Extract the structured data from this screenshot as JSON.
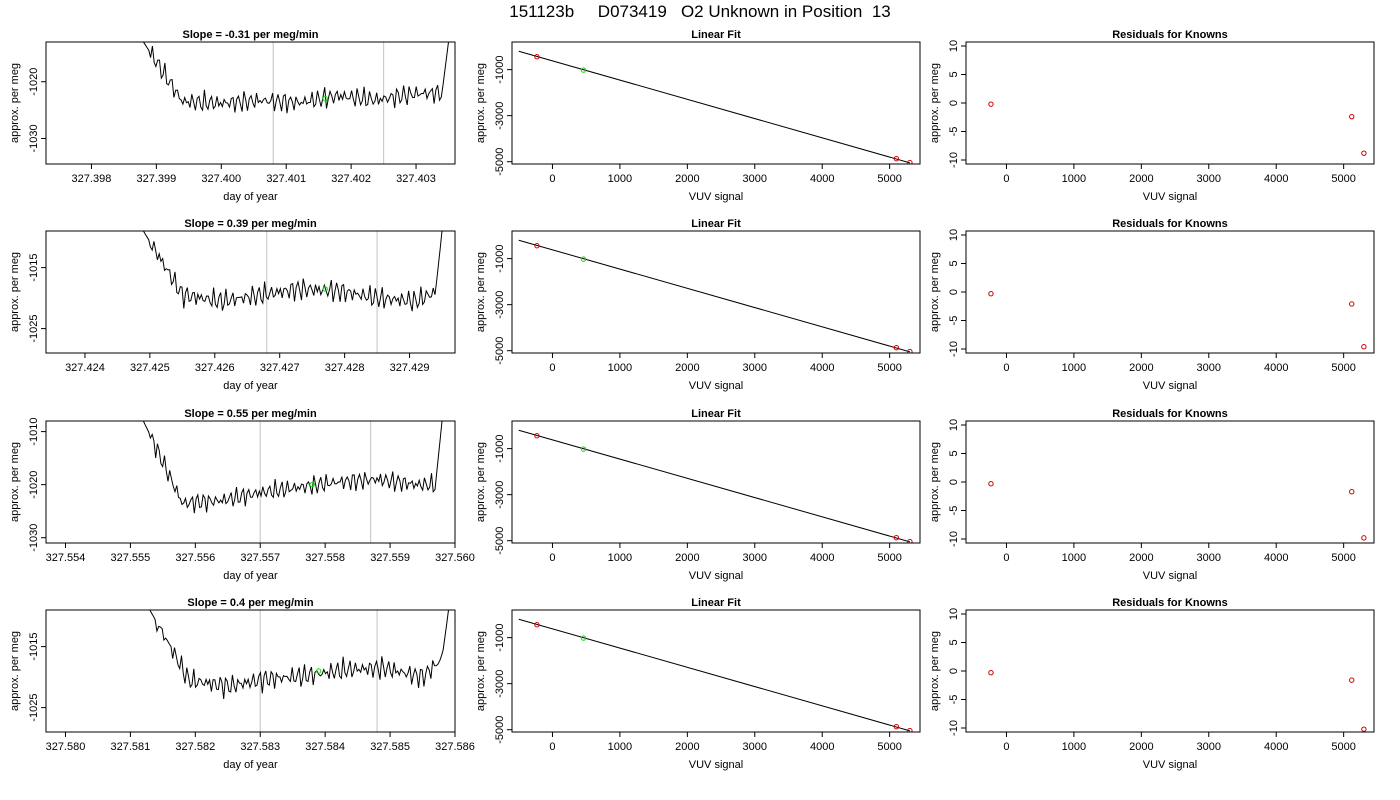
{
  "page": {
    "title": "151123b     D073419   O2 Unknown in Position  13"
  },
  "chart_data": [
    {
      "type": "line",
      "panel": "timeseries-1",
      "title": "Slope =  -0.31  per meg/min",
      "xlabel": "day of year",
      "ylabel": "approx. per meg",
      "xlim": [
        327.3973,
        327.4036
      ],
      "ylim": [
        -1034.5,
        -1013
      ],
      "xticks": [
        "327.398",
        "327.399",
        "327.400",
        "327.401",
        "327.402",
        "327.403"
      ],
      "yticks": [
        -1030,
        -1020
      ],
      "vlines": [
        327.4008,
        327.4025
      ],
      "marker": {
        "x": 327.4016,
        "y": -1023,
        "color": "#00dd00"
      },
      "line_color": "#000000",
      "series": [
        {
          "x": [
            327.3988,
            327.3994,
            327.4,
            327.4006,
            327.4012,
            327.4018,
            327.4024,
            327.403,
            327.4034,
            327.4035
          ],
          "y": [
            -1013,
            -1023.5,
            -1023.8,
            -1023.3,
            -1023.7,
            -1022.5,
            -1023.2,
            -1022.1,
            -1022.0,
            -1013
          ]
        }
      ]
    },
    {
      "type": "line",
      "panel": "linear-fit-1",
      "title": "Linear Fit",
      "xlabel": "VUV signal",
      "ylabel": "approx. per meg",
      "xlim": [
        -600,
        5450
      ],
      "ylim": [
        -5100,
        200
      ],
      "xticks": [
        0,
        1000,
        2000,
        3000,
        4000,
        5000
      ],
      "yticks": [
        -5000,
        -3000,
        -1000
      ],
      "line": {
        "x": [
          -500,
          5300
        ],
        "y": [
          -200,
          -5050
        ]
      },
      "points": [
        {
          "x": -230,
          "y": -440,
          "color": "#cc0000"
        },
        {
          "x": 5100,
          "y": -4870,
          "color": "#cc0000"
        },
        {
          "x": 5300,
          "y": -5040,
          "color": "#cc0000"
        }
      ],
      "unknown": {
        "x": 460,
        "y": -1020,
        "color": "#00dd00"
      }
    },
    {
      "type": "scatter",
      "panel": "residuals-1",
      "title": "Residuals for Knowns",
      "xlabel": "VUV signal",
      "ylabel": "approx. per meg",
      "xlim": [
        -600,
        5450
      ],
      "ylim": [
        -10.7,
        10.7
      ],
      "xticks": [
        0,
        1000,
        2000,
        3000,
        4000,
        5000
      ],
      "yticks": [
        -10,
        -5,
        0,
        5,
        10
      ],
      "points": [
        {
          "x": -230,
          "y": -0.2
        },
        {
          "x": 5120,
          "y": -2.4
        },
        {
          "x": 5300,
          "y": -8.8
        }
      ],
      "color": "#cc0000"
    },
    {
      "type": "line",
      "panel": "timeseries-2",
      "title": "Slope =  0.39  per meg/min",
      "xlabel": "day of year",
      "ylabel": "approx. per meg",
      "xlim": [
        327.4234,
        327.4297
      ],
      "ylim": [
        -1029,
        -1009
      ],
      "xticks": [
        "327.424",
        "327.425",
        "327.426",
        "327.427",
        "327.428",
        "327.429"
      ],
      "yticks": [
        -1025,
        -1015
      ],
      "vlines": [
        327.4268,
        327.4285
      ],
      "marker": {
        "x": 327.4277,
        "y": -1018.5,
        "color": "#00dd00"
      },
      "line_color": "#000000",
      "series": [
        {
          "x": [
            327.4249,
            327.4255,
            327.4261,
            327.4267,
            327.4273,
            327.4279,
            327.4285,
            327.4291,
            327.4294,
            327.4295
          ],
          "y": [
            -1009,
            -1019.5,
            -1020.5,
            -1019.5,
            -1018.5,
            -1018.8,
            -1020.0,
            -1020.5,
            -1019.0,
            -1009
          ]
        }
      ]
    },
    {
      "type": "line",
      "panel": "linear-fit-2",
      "title": "Linear Fit",
      "xlabel": "VUV signal",
      "ylabel": "approx. per meg",
      "xlim": [
        -600,
        5450
      ],
      "ylim": [
        -5100,
        200
      ],
      "xticks": [
        0,
        1000,
        2000,
        3000,
        4000,
        5000
      ],
      "yticks": [
        -5000,
        -3000,
        -1000
      ],
      "line": {
        "x": [
          -500,
          5300
        ],
        "y": [
          -200,
          -5050
        ]
      },
      "points": [
        {
          "x": -230,
          "y": -440,
          "color": "#cc0000"
        },
        {
          "x": 5100,
          "y": -4870,
          "color": "#cc0000"
        },
        {
          "x": 5300,
          "y": -5040,
          "color": "#cc0000"
        }
      ],
      "unknown": {
        "x": 460,
        "y": -1020,
        "color": "#00dd00"
      }
    },
    {
      "type": "scatter",
      "panel": "residuals-2",
      "title": "Residuals for Knowns",
      "xlabel": "VUV signal",
      "ylabel": "approx. per meg",
      "xlim": [
        -600,
        5450
      ],
      "ylim": [
        -10.7,
        10.7
      ],
      "xticks": [
        0,
        1000,
        2000,
        3000,
        4000,
        5000
      ],
      "yticks": [
        -10,
        -5,
        0,
        5,
        10
      ],
      "points": [
        {
          "x": -230,
          "y": -0.3
        },
        {
          "x": 5120,
          "y": -2.1
        },
        {
          "x": 5300,
          "y": -9.6
        }
      ],
      "color": "#cc0000"
    },
    {
      "type": "line",
      "panel": "timeseries-3",
      "title": "Slope =  0.55  per meg/min",
      "xlabel": "day of year",
      "ylabel": "approx. per meg",
      "xlim": [
        327.5537,
        327.56
      ],
      "ylim": [
        -1031,
        -1008
      ],
      "xticks": [
        "327.554",
        "327.555",
        "327.556",
        "327.557",
        "327.558",
        "327.559",
        "327.560"
      ],
      "yticks": [
        -1030,
        -1020,
        -1010
      ],
      "vlines": [
        327.557,
        327.5587
      ],
      "marker": {
        "x": 327.5578,
        "y": -1020,
        "color": "#00dd00"
      },
      "line_color": "#000000",
      "series": [
        {
          "x": [
            327.5552,
            327.5558,
            327.5564,
            327.557,
            327.5576,
            327.5582,
            327.5588,
            327.5594,
            327.5597,
            327.5598
          ],
          "y": [
            -1008,
            -1023.5,
            -1023.0,
            -1021.5,
            -1020.5,
            -1019.5,
            -1019.0,
            -1020.0,
            -1020.0,
            -1008
          ]
        }
      ]
    },
    {
      "type": "line",
      "panel": "linear-fit-3",
      "title": "Linear Fit",
      "xlabel": "VUV signal",
      "ylabel": "approx. per meg",
      "xlim": [
        -600,
        5450
      ],
      "ylim": [
        -5100,
        200
      ],
      "xticks": [
        0,
        1000,
        2000,
        3000,
        4000,
        5000
      ],
      "yticks": [
        -5000,
        -3000,
        -1000
      ],
      "line": {
        "x": [
          -500,
          5300
        ],
        "y": [
          -200,
          -5050
        ]
      },
      "points": [
        {
          "x": -230,
          "y": -440,
          "color": "#cc0000"
        },
        {
          "x": 5100,
          "y": -4870,
          "color": "#cc0000"
        },
        {
          "x": 5300,
          "y": -5040,
          "color": "#cc0000"
        }
      ],
      "unknown": {
        "x": 460,
        "y": -1020,
        "color": "#00dd00"
      }
    },
    {
      "type": "scatter",
      "panel": "residuals-3",
      "title": "Residuals for Knowns",
      "xlabel": "VUV signal",
      "ylabel": "approx. per meg",
      "xlim": [
        -600,
        5450
      ],
      "ylim": [
        -10.7,
        10.7
      ],
      "xticks": [
        0,
        1000,
        2000,
        3000,
        4000,
        5000
      ],
      "yticks": [
        -10,
        -5,
        0,
        5,
        10
      ],
      "points": [
        {
          "x": -230,
          "y": -0.3
        },
        {
          "x": 5120,
          "y": -1.7
        },
        {
          "x": 5300,
          "y": -9.8
        }
      ],
      "color": "#cc0000"
    },
    {
      "type": "line",
      "panel": "timeseries-4",
      "title": "Slope =  0.4  per meg/min",
      "xlabel": "day of year",
      "ylabel": "approx. per meg",
      "xlim": [
        327.5797,
        327.586
      ],
      "ylim": [
        -1029,
        -1009
      ],
      "xticks": [
        "327.580",
        "327.581",
        "327.582",
        "327.583",
        "327.584",
        "327.585",
        "327.586"
      ],
      "yticks": [
        -1025,
        -1015
      ],
      "vlines": [
        327.583,
        327.5848
      ],
      "marker": {
        "x": 327.5839,
        "y": -1019,
        "color": "#00dd00"
      },
      "line_color": "#000000",
      "series": [
        {
          "x": [
            327.5813,
            327.5819,
            327.5825,
            327.5831,
            327.5837,
            327.5843,
            327.5849,
            327.5855,
            327.5858,
            327.5859
          ],
          "y": [
            -1009,
            -1020.5,
            -1021.5,
            -1020.3,
            -1019.8,
            -1018.8,
            -1018.5,
            -1020.0,
            -1017.0,
            -1009
          ]
        }
      ]
    },
    {
      "type": "line",
      "panel": "linear-fit-4",
      "title": "Linear Fit",
      "xlabel": "VUV signal",
      "ylabel": "approx. per meg",
      "xlim": [
        -600,
        5450
      ],
      "ylim": [
        -5100,
        200
      ],
      "xticks": [
        0,
        1000,
        2000,
        3000,
        4000,
        5000
      ],
      "yticks": [
        -5000,
        -3000,
        -1000
      ],
      "line": {
        "x": [
          -500,
          5300
        ],
        "y": [
          -200,
          -5050
        ]
      },
      "points": [
        {
          "x": -230,
          "y": -440,
          "color": "#cc0000"
        },
        {
          "x": 5100,
          "y": -4870,
          "color": "#cc0000"
        },
        {
          "x": 5300,
          "y": -5040,
          "color": "#cc0000"
        }
      ],
      "unknown": {
        "x": 460,
        "y": -1020,
        "color": "#00dd00"
      }
    },
    {
      "type": "scatter",
      "panel": "residuals-4",
      "title": "Residuals for Knowns",
      "xlabel": "VUV signal",
      "ylabel": "approx. per meg",
      "xlim": [
        -600,
        5450
      ],
      "ylim": [
        -10.7,
        10.7
      ],
      "xticks": [
        0,
        1000,
        2000,
        3000,
        4000,
        5000
      ],
      "yticks": [
        -10,
        -5,
        0,
        5,
        10
      ],
      "points": [
        {
          "x": -230,
          "y": -0.3
        },
        {
          "x": 5120,
          "y": -1.6
        },
        {
          "x": 5300,
          "y": -10.2
        }
      ],
      "color": "#cc0000"
    }
  ]
}
